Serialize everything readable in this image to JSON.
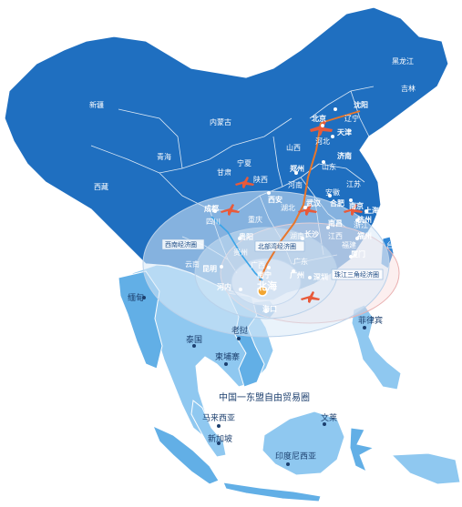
{
  "map_title": "中国一东盟自由贸易圈",
  "colors": {
    "china_land": "#1f6fc0",
    "china_coast": "#2f86d6",
    "asean_land": "#8fc8f0",
    "asean_dark": "#62afe6",
    "circle_fill": "#d9e9f7",
    "circle_stroke": "#b9d1ea",
    "pink_circle": "#f7d2d2",
    "route": "#e8762b",
    "border": "#ffffff"
  },
  "provinces": {
    "heilongjiang": "黑龙江",
    "jilin": "吉林",
    "liaoning": "辽宁",
    "xinjiang": "新疆",
    "neimenggu": "内蒙古",
    "qinghai": "青海",
    "xizang": "西藏",
    "gansu": "甘肃",
    "ningxia": "宁夏",
    "shanxi": "山西",
    "shaanxi": "陕西",
    "shandong": "山东",
    "henan": "河南",
    "jiangsu": "江苏",
    "anhui": "安徽",
    "hubei": "湖北",
    "sichuan": "四川",
    "chongqing": "重庆",
    "guizhou": "贵州",
    "yunnan": "云南",
    "hunan": "湖南",
    "jiangxi": "江西",
    "fujian": "福建",
    "guangdong": "广东",
    "guangxi": "广西",
    "taiwan": "台湾",
    "hebei": "河北",
    "zhejiang": "浙江"
  },
  "cities": {
    "beijing": "北京",
    "shenyang": "沈阳",
    "tianjin": "天津",
    "jinan": "济南",
    "zhengzhou": "郑州",
    "xian": "西安",
    "chengdu": "成都",
    "wuhan": "武汉",
    "hefei": "合肥",
    "nanjing": "南京",
    "shanghai": "上海",
    "hangzhou": "杭州",
    "changsha": "长沙",
    "nanchang": "南昌",
    "fuzhou": "福州",
    "xiamen": "厦门",
    "guiyang": "贵阳",
    "kunming": "昆明",
    "nanning": "南宁",
    "beihai": "北海",
    "guangzhou": "广州",
    "shenzhen": "深圳",
    "haikou": "海口",
    "hanoi": "河内"
  },
  "zones": {
    "southwest": "西南经济圈",
    "beibu_gulf": "北部湾经济圈",
    "pearl_delta": "珠江三角经济圈"
  },
  "asean": {
    "myanmar": "缅甸",
    "thailand": "泰国",
    "laos": "老挝",
    "cambodia": "柬埔寨",
    "vietnam": "越南",
    "philippines": "菲律宾",
    "malaysia": "马来西亚",
    "singapore": "新加坡",
    "brunei": "文莱",
    "indonesia": "印度尼西亚"
  }
}
